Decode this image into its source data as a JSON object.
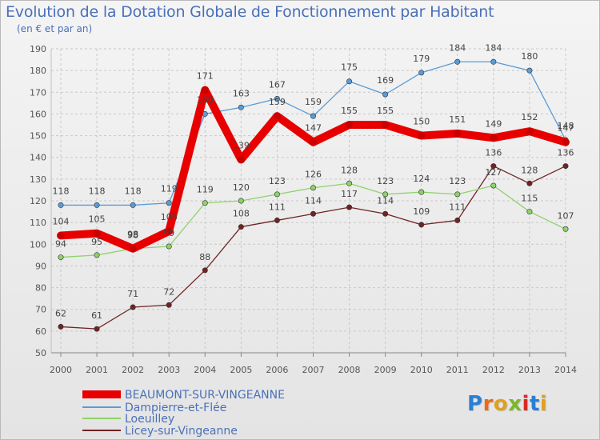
{
  "title": "Evolution de la Dotation Globale de Fonctionnement par Habitant",
  "subtitle": "(en € et par an)",
  "brand": {
    "text": "Proxiti",
    "letter_colors": [
      "#2a7fd4",
      "#e86a1a",
      "#e0a020",
      "#79b928",
      "#d92b20",
      "#2a7fd4",
      "#e0a020"
    ]
  },
  "colors": {
    "axis_text": "#555555",
    "grid": "#c8c8c8",
    "label": "#444444"
  },
  "chart_data": {
    "type": "line",
    "title": "Evolution de la Dotation Globale de Fonctionnement par Habitant",
    "subtitle": "(en € et par an)",
    "xlabel": "",
    "ylabel": "",
    "x": [
      "2000",
      "2001",
      "2002",
      "2003",
      "2004",
      "2005",
      "2006",
      "2007",
      "2008",
      "2009",
      "2010",
      "2011",
      "2012",
      "2013",
      "2014"
    ],
    "ylim": [
      50,
      190
    ],
    "yticks": [
      50,
      60,
      70,
      80,
      90,
      100,
      110,
      120,
      130,
      140,
      150,
      160,
      170,
      180,
      190
    ],
    "grid": true,
    "legend_position": "bottom-left",
    "series": [
      {
        "name": "BEAUMONT-SUR-VINGEANNE",
        "color": "#e80000",
        "values": [
          104,
          105,
          98,
          106,
          171,
          139,
          159,
          147,
          155,
          155,
          150,
          151,
          149,
          152,
          147
        ]
      },
      {
        "name": "Dampierre-et-Flée",
        "color": "#5b9bd5",
        "values": [
          118,
          118,
          118,
          119,
          160,
          163,
          167,
          159,
          175,
          169,
          179,
          184,
          184,
          180,
          148
        ]
      },
      {
        "name": "Loeuilley",
        "color": "#8fd16a",
        "values": [
          94,
          95,
          98,
          99,
          119,
          120,
          123,
          126,
          128,
          123,
          124,
          123,
          127,
          115,
          107
        ]
      },
      {
        "name": "Licey-sur-Vingeanne",
        "color": "#6e2424",
        "values": [
          62,
          61,
          71,
          72,
          88,
          108,
          111,
          114,
          117,
          114,
          109,
          111,
          136,
          128,
          136
        ]
      }
    ]
  }
}
